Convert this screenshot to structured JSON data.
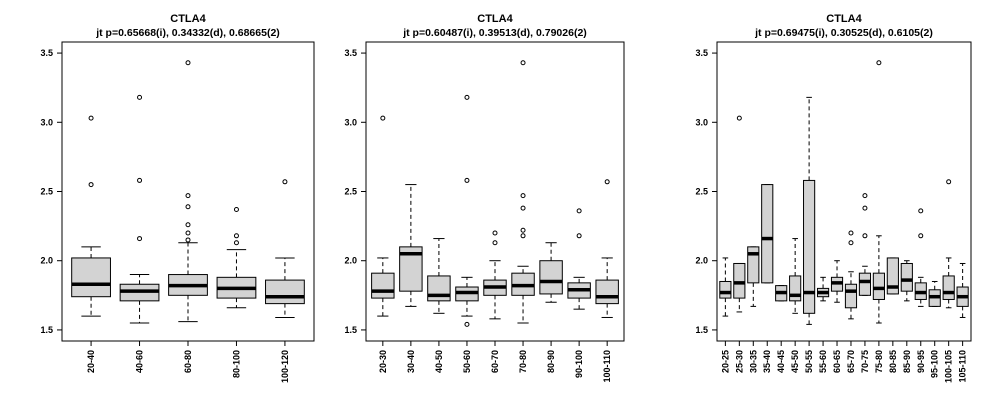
{
  "chart_data": [
    {
      "type": "box",
      "title": "CTLA4",
      "subtitle": "jt p=0.65668(i), 0.34332(d), 0.68665(2)",
      "ylim": [
        1.5,
        3.5
      ],
      "yticks": [
        1.5,
        2.0,
        2.5,
        3.0,
        3.5
      ],
      "ytick_labels": [
        "1.5",
        "2.0",
        "2.5",
        "3.0",
        "3.5"
      ],
      "box_color": "#d3d3d3",
      "categories": [
        "20-40",
        "40-60",
        "60-80",
        "80-100",
        "100-120"
      ],
      "boxes": [
        {
          "lower_whisker": 1.6,
          "q1": 1.74,
          "median": 1.83,
          "q3": 2.02,
          "upper_whisker": 2.1,
          "outliers": [
            2.55,
            3.03
          ]
        },
        {
          "lower_whisker": 1.55,
          "q1": 1.71,
          "median": 1.78,
          "q3": 1.83,
          "upper_whisker": 1.9,
          "outliers": [
            2.16,
            2.58,
            3.18
          ]
        },
        {
          "lower_whisker": 1.56,
          "q1": 1.75,
          "median": 1.82,
          "q3": 1.9,
          "upper_whisker": 2.13,
          "outliers": [
            2.15,
            2.2,
            2.26,
            2.39,
            2.47,
            3.43
          ]
        },
        {
          "lower_whisker": 1.66,
          "q1": 1.73,
          "median": 1.8,
          "q3": 1.88,
          "upper_whisker": 2.08,
          "outliers": [
            2.13,
            2.18,
            2.37
          ]
        },
        {
          "lower_whisker": 1.59,
          "q1": 1.69,
          "median": 1.74,
          "q3": 1.86,
          "upper_whisker": 2.02,
          "outliers": [
            2.57
          ]
        }
      ]
    },
    {
      "type": "box",
      "title": "CTLA4",
      "subtitle": "jt p=0.60487(i), 0.39513(d), 0.79026(2)",
      "ylim": [
        1.5,
        3.5
      ],
      "yticks": [
        1.5,
        2.0,
        2.5,
        3.0,
        3.5
      ],
      "ytick_labels": [
        "1.5",
        "2.0",
        "2.5",
        "3.0",
        "3.5"
      ],
      "box_color": "#d3d3d3",
      "categories": [
        "20-30",
        "30-40",
        "40-50",
        "50-60",
        "60-70",
        "70-80",
        "80-90",
        "90-100",
        "100-110"
      ],
      "boxes": [
        {
          "lower_whisker": 1.6,
          "q1": 1.73,
          "median": 1.78,
          "q3": 1.91,
          "upper_whisker": 2.02,
          "outliers": [
            3.03
          ]
        },
        {
          "lower_whisker": 1.67,
          "q1": 1.78,
          "median": 2.05,
          "q3": 2.1,
          "upper_whisker": 2.55,
          "outliers": []
        },
        {
          "lower_whisker": 1.62,
          "q1": 1.71,
          "median": 1.75,
          "q3": 1.89,
          "upper_whisker": 2.16,
          "outliers": []
        },
        {
          "lower_whisker": 1.6,
          "q1": 1.71,
          "median": 1.77,
          "q3": 1.81,
          "upper_whisker": 1.88,
          "outliers": [
            1.54,
            2.58,
            3.18
          ]
        },
        {
          "lower_whisker": 1.58,
          "q1": 1.75,
          "median": 1.81,
          "q3": 1.86,
          "upper_whisker": 2.0,
          "outliers": [
            2.13,
            2.2
          ]
        },
        {
          "lower_whisker": 1.55,
          "q1": 1.75,
          "median": 1.82,
          "q3": 1.91,
          "upper_whisker": 1.96,
          "outliers": [
            2.18,
            2.22,
            2.38,
            2.47,
            3.43
          ]
        },
        {
          "lower_whisker": 1.7,
          "q1": 1.76,
          "median": 1.85,
          "q3": 2.0,
          "upper_whisker": 2.13,
          "outliers": []
        },
        {
          "lower_whisker": 1.65,
          "q1": 1.73,
          "median": 1.79,
          "q3": 1.84,
          "upper_whisker": 1.88,
          "outliers": [
            2.18,
            2.36
          ]
        },
        {
          "lower_whisker": 1.59,
          "q1": 1.69,
          "median": 1.74,
          "q3": 1.86,
          "upper_whisker": 2.02,
          "outliers": [
            2.57
          ]
        }
      ]
    },
    {
      "type": "box",
      "title": "CTLA4",
      "subtitle": "jt p=0.69475(i), 0.30525(d), 0.6105(2)",
      "ylim": [
        1.5,
        3.5
      ],
      "yticks": [
        1.5,
        2.0,
        2.5,
        3.0,
        3.5
      ],
      "ytick_labels": [
        "1.5",
        "2.0",
        "2.5",
        "3.0",
        "3.5"
      ],
      "box_color": "#d3d3d3",
      "categories": [
        "20-25",
        "25-30",
        "30-35",
        "35-40",
        "40-45",
        "45-50",
        "50-55",
        "55-60",
        "60-65",
        "65-70",
        "70-75",
        "75-80",
        "80-85",
        "85-90",
        "90-95",
        "95-100",
        "100-105",
        "105-110"
      ],
      "boxes": [
        {
          "lower_whisker": 1.6,
          "q1": 1.73,
          "median": 1.77,
          "q3": 1.85,
          "upper_whisker": 2.02,
          "outliers": []
        },
        {
          "lower_whisker": 1.63,
          "q1": 1.73,
          "median": 1.84,
          "q3": 1.98,
          "upper_whisker": 1.98,
          "outliers": [
            3.03
          ]
        },
        {
          "lower_whisker": 1.67,
          "q1": 1.84,
          "median": 2.05,
          "q3": 2.1,
          "upper_whisker": 2.1,
          "outliers": []
        },
        {
          "lower_whisker": 1.84,
          "q1": 1.84,
          "median": 2.16,
          "q3": 2.55,
          "upper_whisker": 2.55,
          "outliers": []
        },
        {
          "lower_whisker": 1.71,
          "q1": 1.71,
          "median": 1.77,
          "q3": 1.82,
          "upper_whisker": 1.82,
          "outliers": []
        },
        {
          "lower_whisker": 1.62,
          "q1": 1.71,
          "median": 1.75,
          "q3": 1.89,
          "upper_whisker": 2.16,
          "outliers": []
        },
        {
          "lower_whisker": 1.54,
          "q1": 1.62,
          "median": 1.77,
          "q3": 2.58,
          "upper_whisker": 3.18,
          "outliers": []
        },
        {
          "lower_whisker": 1.71,
          "q1": 1.74,
          "median": 1.77,
          "q3": 1.8,
          "upper_whisker": 1.88,
          "outliers": []
        },
        {
          "lower_whisker": 1.7,
          "q1": 1.78,
          "median": 1.84,
          "q3": 1.88,
          "upper_whisker": 2.0,
          "outliers": []
        },
        {
          "lower_whisker": 1.58,
          "q1": 1.66,
          "median": 1.78,
          "q3": 1.83,
          "upper_whisker": 1.92,
          "outliers": [
            2.13,
            2.2
          ]
        },
        {
          "lower_whisker": 1.75,
          "q1": 1.75,
          "median": 1.85,
          "q3": 1.91,
          "upper_whisker": 1.96,
          "outliers": [
            2.18,
            2.38,
            2.47
          ]
        },
        {
          "lower_whisker": 1.55,
          "q1": 1.72,
          "median": 1.8,
          "q3": 1.91,
          "upper_whisker": 2.18,
          "outliers": [
            3.43
          ]
        },
        {
          "lower_whisker": 1.76,
          "q1": 1.76,
          "median": 1.81,
          "q3": 2.02,
          "upper_whisker": 2.02,
          "outliers": []
        },
        {
          "lower_whisker": 1.71,
          "q1": 1.78,
          "median": 1.86,
          "q3": 1.98,
          "upper_whisker": 2.0,
          "outliers": []
        },
        {
          "lower_whisker": 1.67,
          "q1": 1.72,
          "median": 1.77,
          "q3": 1.84,
          "upper_whisker": 1.88,
          "outliers": [
            2.18,
            2.36
          ]
        },
        {
          "lower_whisker": 1.67,
          "q1": 1.67,
          "median": 1.74,
          "q3": 1.79,
          "upper_whisker": 1.85,
          "outliers": []
        },
        {
          "lower_whisker": 1.66,
          "q1": 1.72,
          "median": 1.77,
          "q3": 1.89,
          "upper_whisker": 2.02,
          "outliers": [
            2.57
          ]
        },
        {
          "lower_whisker": 1.59,
          "q1": 1.67,
          "median": 1.74,
          "q3": 1.81,
          "upper_whisker": 1.98,
          "outliers": []
        }
      ]
    }
  ]
}
